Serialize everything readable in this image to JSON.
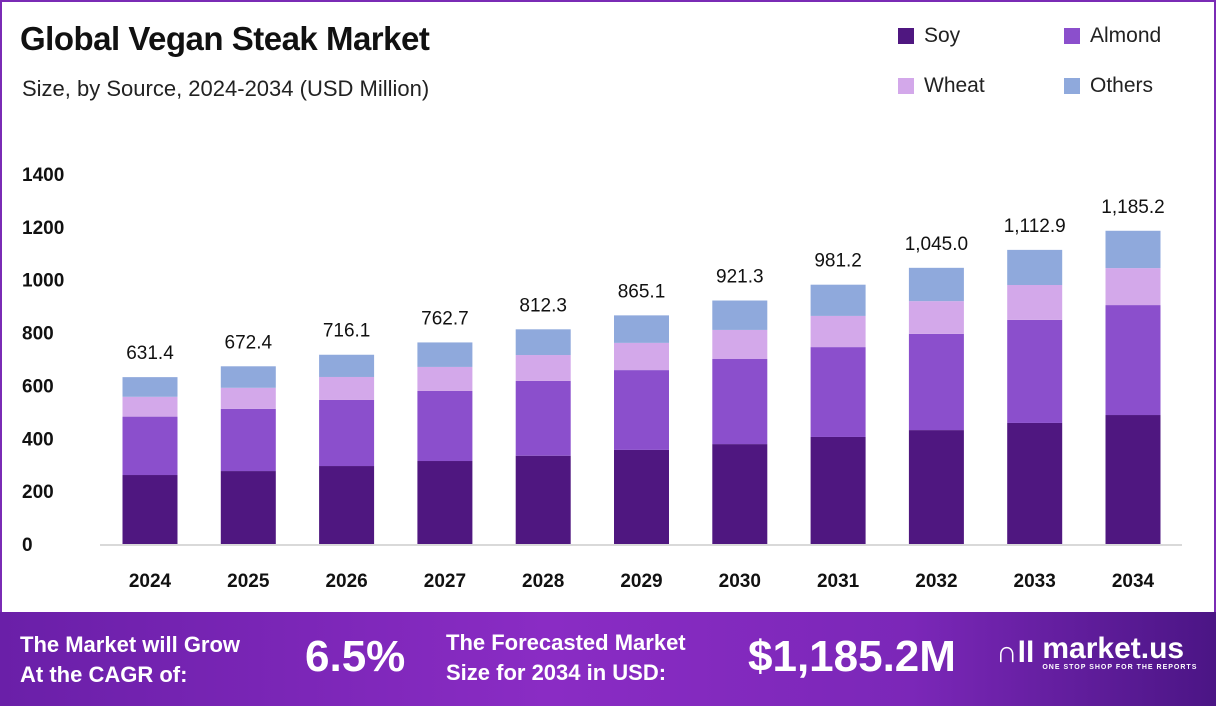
{
  "chart_data": {
    "type": "bar",
    "stacked": true,
    "title": "Global Vegan Steak Market",
    "subtitle": "Size, by Source, 2024-2034 (USD Million)",
    "categories": [
      "2024",
      "2025",
      "2026",
      "2027",
      "2028",
      "2029",
      "2030",
      "2031",
      "2032",
      "2033",
      "2034"
    ],
    "series": [
      {
        "name": "Soy",
        "color": "#4f1780",
        "values": [
          261,
          276,
          295,
          314,
          334,
          356,
          378,
          405,
          431,
          458,
          488
        ]
      },
      {
        "name": "Almond",
        "color": "#8b4fcc",
        "values": [
          221,
          235,
          250,
          265,
          283,
          302,
          322,
          340,
          364,
          390,
          416
        ]
      },
      {
        "name": "Wheat",
        "color": "#d3a8ea",
        "values": [
          75,
          80,
          87,
          91,
          98,
          103,
          110,
          118,
          124,
          132,
          140
        ]
      },
      {
        "name": "Others",
        "color": "#8fa9dc",
        "values": [
          74.4,
          81.4,
          84.1,
          92.7,
          97.3,
          104.1,
          111.3,
          118.2,
          126.0,
          132.9,
          141.2
        ]
      }
    ],
    "totals": [
      "631.4",
      "672.4",
      "716.1",
      "762.7",
      "812.3",
      "865.1",
      "921.3",
      "981.2",
      "1,045.0",
      "1,112.9",
      "1,185.2"
    ],
    "yticks": [
      "0",
      "200",
      "400",
      "600",
      "800",
      "1000",
      "1200",
      "1400"
    ],
    "ylim": [
      0,
      1400
    ],
    "grid": false,
    "legend_position": "top-right"
  },
  "footer": {
    "cagr_label_1": "The Market will Grow",
    "cagr_label_2": "At the CAGR of:",
    "cagr_value": "6.5%",
    "forecast_label_1": "The Forecasted Market",
    "forecast_label_2": "Size for 2034 in USD:",
    "forecast_value": "$1,185.2M",
    "brand_name": "market.us",
    "brand_tagline": "ONE STOP SHOP FOR THE REPORTS"
  }
}
